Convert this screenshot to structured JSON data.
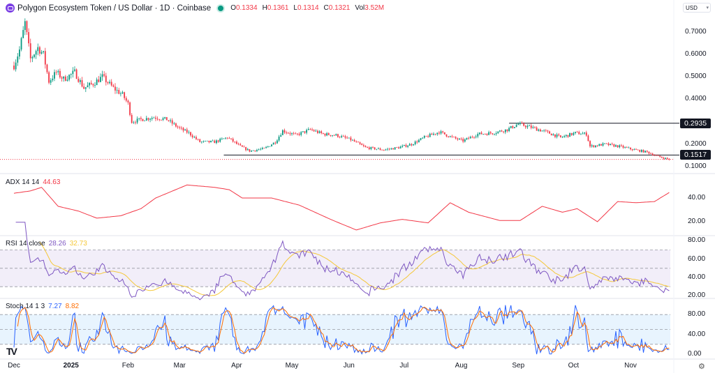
{
  "header": {
    "title": "Polygon Ecosystem Token / US Dollar · 1D · Coinbase",
    "ohlc": {
      "o_label": "O",
      "o": "0.1334",
      "h_label": "H",
      "h": "0.1361",
      "l_label": "L",
      "l": "0.1314",
      "c_label": "C",
      "c": "0.1321",
      "vol_label": "Vol",
      "vol": "3.52M"
    },
    "currency": "USD",
    "symbol_icon": "polygon-logo-icon",
    "status_color": "#089981"
  },
  "colors": {
    "up": "#089981",
    "down": "#f23645",
    "adx": "#f23645",
    "rsi": "#7e57c2",
    "rsi_ma": "#f5c83a",
    "stoch_k": "#2962ff",
    "stoch_d": "#ff6d00",
    "rsi_band": "#7e57c2",
    "stoch_band": "#2196f3"
  },
  "chart_data": [
    {
      "type": "candlestick",
      "pane": "price",
      "y_ticks": [
        "0.7000",
        "0.6000",
        "0.5000",
        "0.4000",
        "0.2000",
        "0.1000"
      ],
      "ylim": [
        0.08,
        0.78
      ],
      "x_ticks": [
        "Dec",
        "2025",
        "Feb",
        "Mar",
        "Apr",
        "May",
        "Jun",
        "Jul",
        "Aug",
        "Sep",
        "Oct",
        "Nov"
      ],
      "horizontal_lines": [
        {
          "value": 0.2935,
          "label": "0.2935",
          "from": "2025-08-27"
        },
        {
          "value": 0.1517,
          "label": "0.1517",
          "from": "2025-03-25"
        }
      ],
      "last_price": 0.1321,
      "closes": [
        [
          "2024-12-01",
          0.55
        ],
        [
          "2024-12-04",
          0.62
        ],
        [
          "2024-12-07",
          0.74
        ],
        [
          "2024-12-10",
          0.58
        ],
        [
          "2024-12-14",
          0.63
        ],
        [
          "2024-12-17",
          0.6
        ],
        [
          "2024-12-20",
          0.48
        ],
        [
          "2024-12-24",
          0.52
        ],
        [
          "2024-12-28",
          0.49
        ],
        [
          "2025-01-03",
          0.52
        ],
        [
          "2025-01-08",
          0.45
        ],
        [
          "2025-01-13",
          0.47
        ],
        [
          "2025-01-18",
          0.5
        ],
        [
          "2025-01-24",
          0.45
        ],
        [
          "2025-01-29",
          0.42
        ],
        [
          "2025-02-01",
          0.38
        ],
        [
          "2025-02-03",
          0.3
        ],
        [
          "2025-02-08",
          0.31
        ],
        [
          "2025-02-15",
          0.32
        ],
        [
          "2025-02-22",
          0.31
        ],
        [
          "2025-03-01",
          0.27
        ],
        [
          "2025-03-06",
          0.25
        ],
        [
          "2025-03-12",
          0.21
        ],
        [
          "2025-03-20",
          0.21
        ],
        [
          "2025-03-27",
          0.23
        ],
        [
          "2025-04-03",
          0.19
        ],
        [
          "2025-04-08",
          0.17
        ],
        [
          "2025-04-16",
          0.18
        ],
        [
          "2025-04-22",
          0.21
        ],
        [
          "2025-04-26",
          0.26
        ],
        [
          "2025-05-03",
          0.24
        ],
        [
          "2025-05-11",
          0.265
        ],
        [
          "2025-05-18",
          0.245
        ],
        [
          "2025-05-25",
          0.24
        ],
        [
          "2025-06-02",
          0.22
        ],
        [
          "2025-06-10",
          0.185
        ],
        [
          "2025-06-20",
          0.175
        ],
        [
          "2025-06-28",
          0.185
        ],
        [
          "2025-07-05",
          0.2
        ],
        [
          "2025-07-12",
          0.23
        ],
        [
          "2025-07-20",
          0.255
        ],
        [
          "2025-07-27",
          0.23
        ],
        [
          "2025-08-02",
          0.215
        ],
        [
          "2025-08-10",
          0.245
        ],
        [
          "2025-08-18",
          0.25
        ],
        [
          "2025-08-26",
          0.265
        ],
        [
          "2025-09-01",
          0.29
        ],
        [
          "2025-09-08",
          0.275
        ],
        [
          "2025-09-16",
          0.255
        ],
        [
          "2025-09-24",
          0.23
        ],
        [
          "2025-10-02",
          0.25
        ],
        [
          "2025-10-08",
          0.245
        ],
        [
          "2025-10-10",
          0.19
        ],
        [
          "2025-10-18",
          0.2
        ],
        [
          "2025-10-26",
          0.19
        ],
        [
          "2025-11-03",
          0.175
        ],
        [
          "2025-11-10",
          0.165
        ],
        [
          "2025-11-16",
          0.145
        ],
        [
          "2025-11-22",
          0.1321
        ]
      ]
    },
    {
      "type": "line",
      "pane": "adx",
      "title": "ADX 14 14",
      "last_value": "44.63",
      "y_ticks": [
        "40.00",
        "20.00"
      ],
      "values": [
        [
          "2024-12-01",
          44
        ],
        [
          "2024-12-10",
          46
        ],
        [
          "2024-12-16",
          49
        ],
        [
          "2024-12-25",
          33
        ],
        [
          "2025-01-05",
          29
        ],
        [
          "2025-01-15",
          23
        ],
        [
          "2025-01-28",
          25
        ],
        [
          "2025-02-08",
          31
        ],
        [
          "2025-02-16",
          40
        ],
        [
          "2025-03-05",
          51
        ],
        [
          "2025-03-20",
          49
        ],
        [
          "2025-03-28",
          47
        ],
        [
          "2025-04-04",
          40
        ],
        [
          "2025-04-20",
          40
        ],
        [
          "2025-05-05",
          34
        ],
        [
          "2025-05-22",
          22
        ],
        [
          "2025-06-05",
          13
        ],
        [
          "2025-06-18",
          19
        ],
        [
          "2025-06-30",
          22
        ],
        [
          "2025-07-14",
          19
        ],
        [
          "2025-07-26",
          36
        ],
        [
          "2025-08-05",
          28
        ],
        [
          "2025-08-22",
          21
        ],
        [
          "2025-09-02",
          21
        ],
        [
          "2025-09-14",
          33
        ],
        [
          "2025-09-25",
          28
        ],
        [
          "2025-10-03",
          31
        ],
        [
          "2025-10-14",
          20
        ],
        [
          "2025-10-25",
          37
        ],
        [
          "2025-11-04",
          36
        ],
        [
          "2025-11-14",
          37
        ],
        [
          "2025-11-22",
          44.63
        ]
      ]
    },
    {
      "type": "line",
      "pane": "rsi",
      "title": "RSI 14 close",
      "series": [
        {
          "last_value": "28.26"
        },
        {
          "last_value": "32.73"
        }
      ],
      "y_ticks": [
        "80.00",
        "60.00",
        "40.00",
        "20.00"
      ],
      "bands": [
        70,
        50,
        30
      ]
    },
    {
      "type": "line",
      "pane": "stoch",
      "title": "Stoch 14 1 3",
      "series": [
        {
          "last_value": "7.27"
        },
        {
          "last_value": "8.82"
        }
      ],
      "y_ticks": [
        "80.00",
        "40.00",
        "0.00"
      ],
      "bands": [
        80,
        50,
        20
      ]
    }
  ],
  "footer": {
    "logo": "TV",
    "settings_icon": "gear-icon"
  }
}
